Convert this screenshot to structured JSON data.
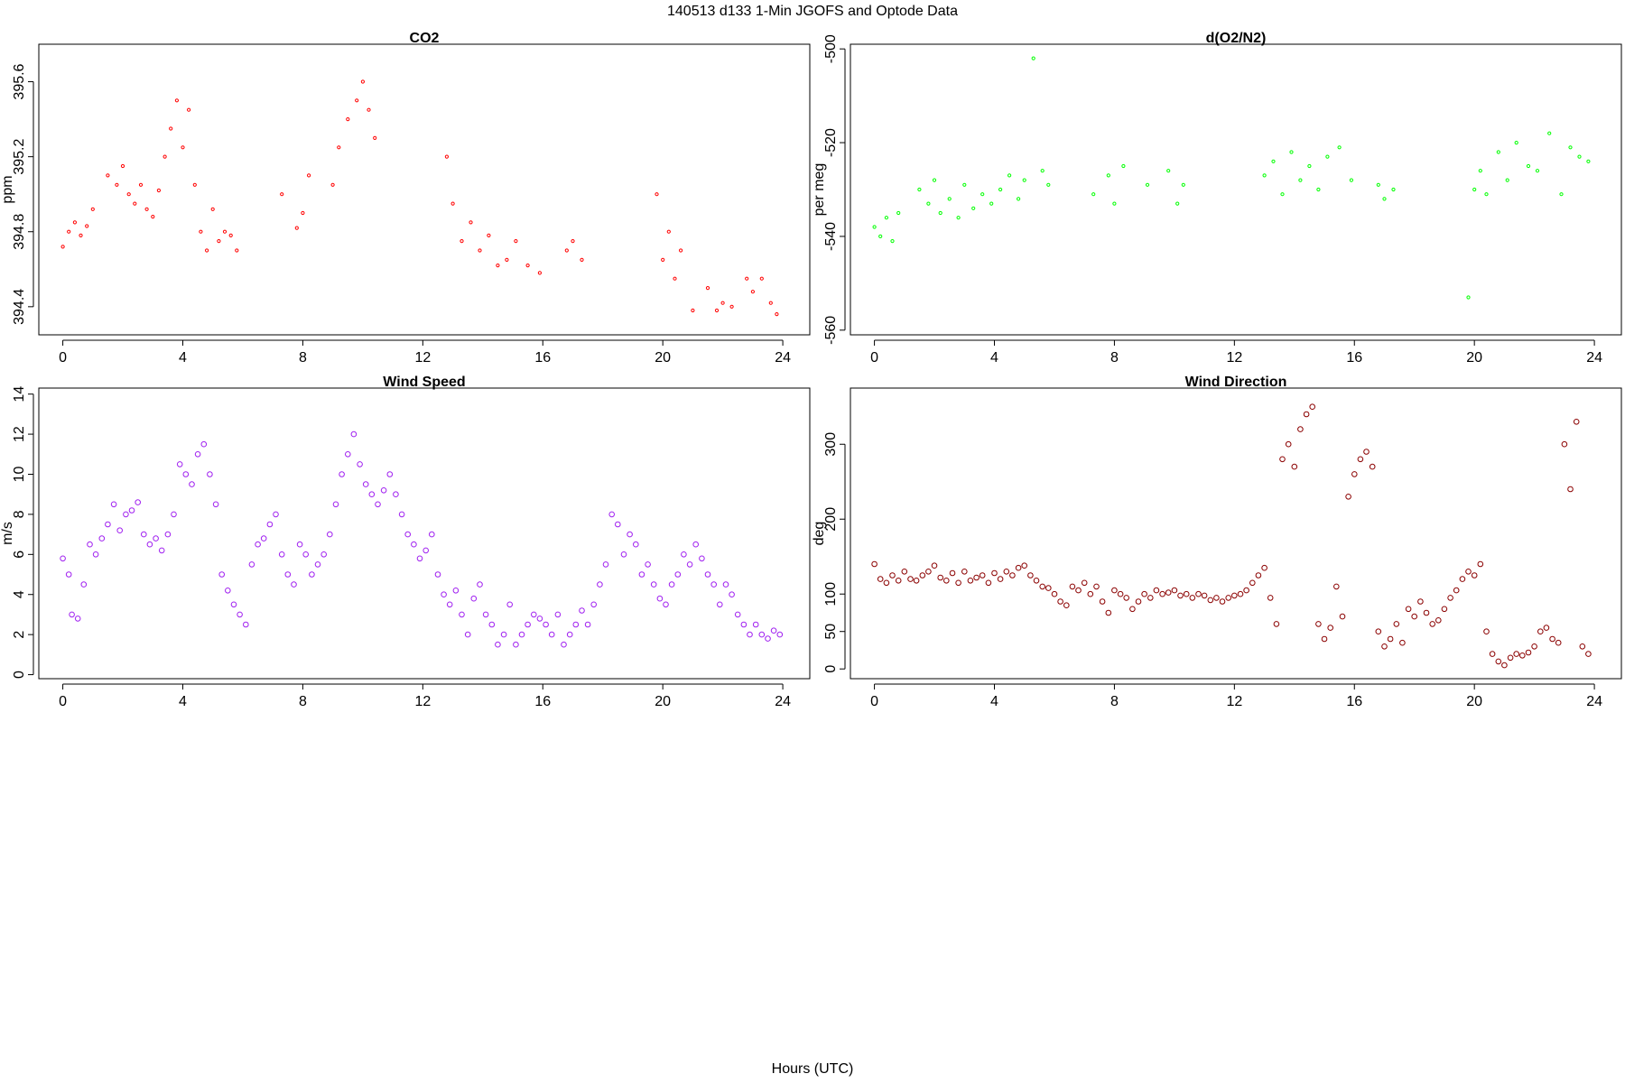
{
  "figure": {
    "title": "140513   d133   1-Min  JGOFS and Optode Data",
    "xlabel": "Hours (UTC)"
  },
  "chart_data": [
    {
      "type": "scatter",
      "title": "CO2",
      "xlabel": "",
      "ylabel": "ppm",
      "xlim": [
        -0.8,
        24.9
      ],
      "ylim": [
        394.25,
        395.8
      ],
      "xticks": [
        0,
        4,
        8,
        12,
        16,
        20,
        24
      ],
      "xtick_labels": [
        "0",
        "4",
        "8",
        "12",
        "16",
        "20",
        "24"
      ],
      "yticks": [
        394.4,
        394.8,
        395.2,
        395.6
      ],
      "ytick_labels": [
        "394.4",
        "394.8",
        "395.2",
        "395.6"
      ],
      "color": "#ff0000",
      "marker_size": 1.6,
      "grid": false,
      "series": [
        {
          "x": [
            0.0,
            0.2,
            0.4,
            0.6,
            0.8,
            1.0,
            1.5,
            1.8,
            2.0,
            2.2,
            2.4,
            2.6,
            2.8,
            3.0,
            3.2,
            3.4,
            3.6,
            3.8,
            4.0,
            4.2,
            4.4,
            4.6,
            4.8,
            5.0,
            5.2,
            5.4,
            5.6,
            5.8,
            7.3,
            7.8,
            8.0,
            8.2,
            9.0,
            9.2,
            9.5,
            9.8,
            10.0,
            10.2,
            10.4,
            12.8,
            13.0,
            13.3,
            13.6,
            13.9,
            14.2,
            14.5,
            14.8,
            15.1,
            15.5,
            15.9,
            16.8,
            17.0,
            17.3,
            19.8,
            20.0,
            20.2,
            20.4,
            20.6,
            21.0,
            21.5,
            21.8,
            22.0,
            22.3,
            22.8,
            23.0,
            23.3,
            23.6,
            23.8
          ],
          "y": [
            394.72,
            394.8,
            394.85,
            394.78,
            394.83,
            394.92,
            395.1,
            395.05,
            395.15,
            395.0,
            394.95,
            395.05,
            394.92,
            394.88,
            395.02,
            395.2,
            395.35,
            395.5,
            395.25,
            395.45,
            395.05,
            394.8,
            394.7,
            394.92,
            394.75,
            394.8,
            394.78,
            394.7,
            395.0,
            394.82,
            394.9,
            395.1,
            395.05,
            395.25,
            395.4,
            395.5,
            395.6,
            395.45,
            395.3,
            395.2,
            394.95,
            394.75,
            394.85,
            394.7,
            394.78,
            394.62,
            394.65,
            394.75,
            394.62,
            394.58,
            394.7,
            394.75,
            394.65,
            395.0,
            394.65,
            394.8,
            394.55,
            394.7,
            394.38,
            394.5,
            394.38,
            394.42,
            394.4,
            394.55,
            394.48,
            394.55,
            394.42,
            394.36
          ]
        }
      ]
    },
    {
      "type": "scatter",
      "title": "d(O2/N2)",
      "xlabel": "",
      "ylabel": "per meg",
      "xlim": [
        -0.8,
        24.9
      ],
      "ylim": [
        -561,
        -499
      ],
      "xticks": [
        0,
        4,
        8,
        12,
        16,
        20,
        24
      ],
      "xtick_labels": [
        "0",
        "4",
        "8",
        "12",
        "16",
        "20",
        "24"
      ],
      "yticks": [
        -560,
        -540,
        -520,
        -500
      ],
      "ytick_labels": [
        "-560",
        "-540",
        "-520",
        "-500"
      ],
      "color": "#00ff00",
      "marker_size": 1.6,
      "grid": false,
      "series": [
        {
          "x": [
            0.0,
            0.2,
            0.4,
            0.6,
            0.8,
            1.5,
            1.8,
            2.0,
            2.2,
            2.5,
            2.8,
            3.0,
            3.3,
            3.6,
            3.9,
            4.2,
            4.5,
            4.8,
            5.0,
            5.3,
            5.6,
            5.8,
            7.3,
            7.8,
            8.0,
            8.3,
            9.1,
            9.8,
            10.1,
            10.3,
            13.0,
            13.3,
            13.6,
            13.9,
            14.2,
            14.5,
            14.8,
            15.1,
            15.5,
            15.9,
            16.8,
            17.0,
            17.3,
            19.8,
            20.0,
            20.2,
            20.4,
            20.8,
            21.1,
            21.4,
            21.8,
            22.1,
            22.5,
            22.9,
            23.2,
            23.5,
            23.8
          ],
          "y": [
            -538,
            -540,
            -536,
            -541,
            -535,
            -530,
            -533,
            -528,
            -535,
            -532,
            -536,
            -529,
            -534,
            -531,
            -533,
            -530,
            -527,
            -532,
            -528,
            -502,
            -526,
            -529,
            -531,
            -527,
            -533,
            -525,
            -529,
            -526,
            -533,
            -529,
            -527,
            -524,
            -531,
            -522,
            -528,
            -525,
            -530,
            -523,
            -521,
            -528,
            -529,
            -532,
            -530,
            -553,
            -530,
            -526,
            -531,
            -522,
            -528,
            -520,
            -525,
            -526,
            -518,
            -531,
            -521,
            -523,
            -524
          ]
        }
      ]
    },
    {
      "type": "scatter",
      "title": "Wind Speed",
      "xlabel": "",
      "ylabel": "m/s",
      "xlim": [
        -0.8,
        24.9
      ],
      "ylim": [
        -0.2,
        14.3
      ],
      "xticks": [
        0,
        4,
        8,
        12,
        16,
        20,
        24
      ],
      "xtick_labels": [
        "0",
        "4",
        "8",
        "12",
        "16",
        "20",
        "24"
      ],
      "yticks": [
        0,
        2,
        4,
        6,
        8,
        10,
        12,
        14
      ],
      "ytick_labels": [
        "0",
        "2",
        "4",
        "6",
        "8",
        "10",
        "12",
        "14"
      ],
      "color": "#a020f0",
      "marker_size": 2.8,
      "grid": false,
      "series": [
        {
          "x": [
            0.0,
            0.2,
            0.3,
            0.5,
            0.7,
            0.9,
            1.1,
            1.3,
            1.5,
            1.7,
            1.9,
            2.1,
            2.3,
            2.5,
            2.7,
            2.9,
            3.1,
            3.3,
            3.5,
            3.7,
            3.9,
            4.1,
            4.3,
            4.5,
            4.7,
            4.9,
            5.1,
            5.3,
            5.5,
            5.7,
            5.9,
            6.1,
            6.3,
            6.5,
            6.7,
            6.9,
            7.1,
            7.3,
            7.5,
            7.7,
            7.9,
            8.1,
            8.3,
            8.5,
            8.7,
            8.9,
            9.1,
            9.3,
            9.5,
            9.7,
            9.9,
            10.1,
            10.3,
            10.5,
            10.7,
            10.9,
            11.1,
            11.3,
            11.5,
            11.7,
            11.9,
            12.1,
            12.3,
            12.5,
            12.7,
            12.9,
            13.1,
            13.3,
            13.5,
            13.7,
            13.9,
            14.1,
            14.3,
            14.5,
            14.7,
            14.9,
            15.1,
            15.3,
            15.5,
            15.7,
            15.9,
            16.1,
            16.3,
            16.5,
            16.7,
            16.9,
            17.1,
            17.3,
            17.5,
            17.7,
            17.9,
            18.1,
            18.3,
            18.5,
            18.7,
            18.9,
            19.1,
            19.3,
            19.5,
            19.7,
            19.9,
            20.1,
            20.3,
            20.5,
            20.7,
            20.9,
            21.1,
            21.3,
            21.5,
            21.7,
            21.9,
            22.1,
            22.3,
            22.5,
            22.7,
            22.9,
            23.1,
            23.3,
            23.5,
            23.7,
            23.9
          ],
          "y": [
            5.8,
            5.0,
            3.0,
            2.8,
            4.5,
            6.5,
            6.0,
            6.8,
            7.5,
            8.5,
            7.2,
            8.0,
            8.2,
            8.6,
            7.0,
            6.5,
            6.8,
            6.2,
            7.0,
            8.0,
            10.5,
            10.0,
            9.5,
            11.0,
            11.5,
            10.0,
            8.5,
            5.0,
            4.2,
            3.5,
            3.0,
            2.5,
            5.5,
            6.5,
            6.8,
            7.5,
            8.0,
            6.0,
            5.0,
            4.5,
            6.5,
            6.0,
            5.0,
            5.5,
            6.0,
            7.0,
            8.5,
            10.0,
            11.0,
            12.0,
            10.5,
            9.5,
            9.0,
            8.5,
            9.2,
            10.0,
            9.0,
            8.0,
            7.0,
            6.5,
            5.8,
            6.2,
            7.0,
            5.0,
            4.0,
            3.5,
            4.2,
            3.0,
            2.0,
            3.8,
            4.5,
            3.0,
            2.5,
            1.5,
            2.0,
            3.5,
            1.5,
            2.0,
            2.5,
            3.0,
            2.8,
            2.5,
            2.0,
            3.0,
            1.5,
            2.0,
            2.5,
            3.2,
            2.5,
            3.5,
            4.5,
            5.5,
            8.0,
            7.5,
            6.0,
            7.0,
            6.5,
            5.0,
            5.5,
            4.5,
            3.8,
            3.5,
            4.5,
            5.0,
            6.0,
            5.5,
            6.5,
            5.8,
            5.0,
            4.5,
            3.5,
            4.5,
            4.0,
            3.0,
            2.5,
            2.0,
            2.5,
            2.0,
            1.8,
            2.2,
            2.0
          ]
        }
      ]
    },
    {
      "type": "scatter",
      "title": "Wind Direction",
      "xlabel": "",
      "ylabel": "deg",
      "xlim": [
        -0.8,
        24.9
      ],
      "ylim": [
        -13,
        375
      ],
      "xticks": [
        0,
        4,
        8,
        12,
        16,
        20,
        24
      ],
      "xtick_labels": [
        "0",
        "4",
        "8",
        "12",
        "16",
        "20",
        "24"
      ],
      "yticks": [
        0,
        50,
        100,
        200,
        300
      ],
      "ytick_labels": [
        "0",
        "50",
        "100",
        "200",
        "300"
      ],
      "color": "#8b0000",
      "marker_size": 2.8,
      "grid": false,
      "series": [
        {
          "x": [
            0.0,
            0.2,
            0.4,
            0.6,
            0.8,
            1.0,
            1.2,
            1.4,
            1.6,
            1.8,
            2.0,
            2.2,
            2.4,
            2.6,
            2.8,
            3.0,
            3.2,
            3.4,
            3.6,
            3.8,
            4.0,
            4.2,
            4.4,
            4.6,
            4.8,
            5.0,
            5.2,
            5.4,
            5.6,
            5.8,
            6.0,
            6.2,
            6.4,
            6.6,
            6.8,
            7.0,
            7.2,
            7.4,
            7.6,
            7.8,
            8.0,
            8.2,
            8.4,
            8.6,
            8.8,
            9.0,
            9.2,
            9.4,
            9.6,
            9.8,
            10.0,
            10.2,
            10.4,
            10.6,
            10.8,
            11.0,
            11.2,
            11.4,
            11.6,
            11.8,
            12.0,
            12.2,
            12.4,
            12.6,
            12.8,
            13.0,
            13.2,
            13.4,
            13.6,
            13.8,
            14.0,
            14.2,
            14.4,
            14.6,
            14.8,
            15.0,
            15.2,
            15.4,
            15.6,
            15.8,
            16.0,
            16.2,
            16.4,
            16.6,
            16.8,
            17.0,
            17.2,
            17.4,
            17.6,
            17.8,
            18.0,
            18.2,
            18.4,
            18.6,
            18.8,
            19.0,
            19.2,
            19.4,
            19.6,
            19.8,
            20.0,
            20.2,
            20.4,
            20.6,
            20.8,
            21.0,
            21.2,
            21.4,
            21.6,
            21.8,
            22.0,
            22.2,
            22.4,
            22.6,
            22.8,
            23.0,
            23.2,
            23.4,
            23.6,
            23.8
          ],
          "y": [
            140,
            120,
            115,
            125,
            118,
            130,
            120,
            118,
            125,
            130,
            138,
            122,
            118,
            128,
            115,
            130,
            118,
            122,
            125,
            115,
            128,
            120,
            130,
            125,
            135,
            138,
            125,
            118,
            110,
            108,
            100,
            90,
            85,
            110,
            105,
            115,
            100,
            110,
            90,
            75,
            105,
            100,
            95,
            80,
            90,
            100,
            95,
            105,
            100,
            102,
            105,
            98,
            100,
            95,
            100,
            98,
            92,
            95,
            90,
            95,
            98,
            100,
            105,
            115,
            125,
            135,
            95,
            60,
            280,
            300,
            270,
            320,
            340,
            350,
            60,
            40,
            55,
            110,
            70,
            230,
            260,
            280,
            290,
            270,
            50,
            30,
            40,
            60,
            35,
            80,
            70,
            90,
            75,
            60,
            65,
            80,
            95,
            105,
            120,
            130,
            125,
            140,
            50,
            20,
            10,
            5,
            15,
            20,
            18,
            22,
            30,
            50,
            55,
            40,
            35,
            300,
            240,
            330,
            30,
            20
          ]
        }
      ]
    }
  ]
}
